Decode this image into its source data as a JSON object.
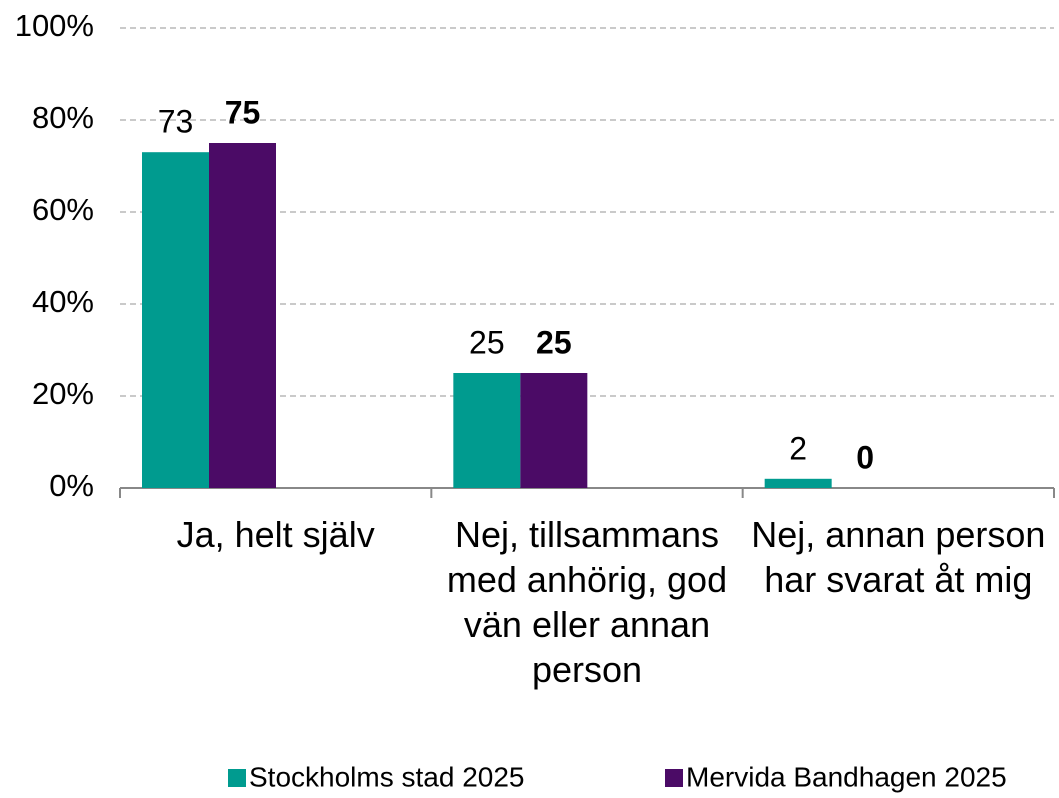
{
  "chart_data": {
    "type": "bar",
    "categories": [
      "Ja, helt själv",
      "Nej, tillsammans med anhörig, god vän eller annan person",
      "Nej, annan person har svarat åt mig"
    ],
    "series": [
      {
        "name": "Stockholms stad 2025",
        "color": "#009b8f",
        "values": [
          73,
          25,
          2
        ]
      },
      {
        "name": "Mervida Bandhagen 2025",
        "color": "#4b0b66",
        "values": [
          75,
          25,
          0
        ]
      }
    ],
    "ylim": [
      0,
      100
    ],
    "yticks": [
      {
        "value": 0,
        "label": "0%"
      },
      {
        "value": 20,
        "label": "20%"
      },
      {
        "value": 40,
        "label": "40%"
      },
      {
        "value": 60,
        "label": "60%"
      },
      {
        "value": 80,
        "label": "80%"
      },
      {
        "value": 100,
        "label": "100%"
      }
    ],
    "grid": true,
    "legend": "bottom"
  }
}
